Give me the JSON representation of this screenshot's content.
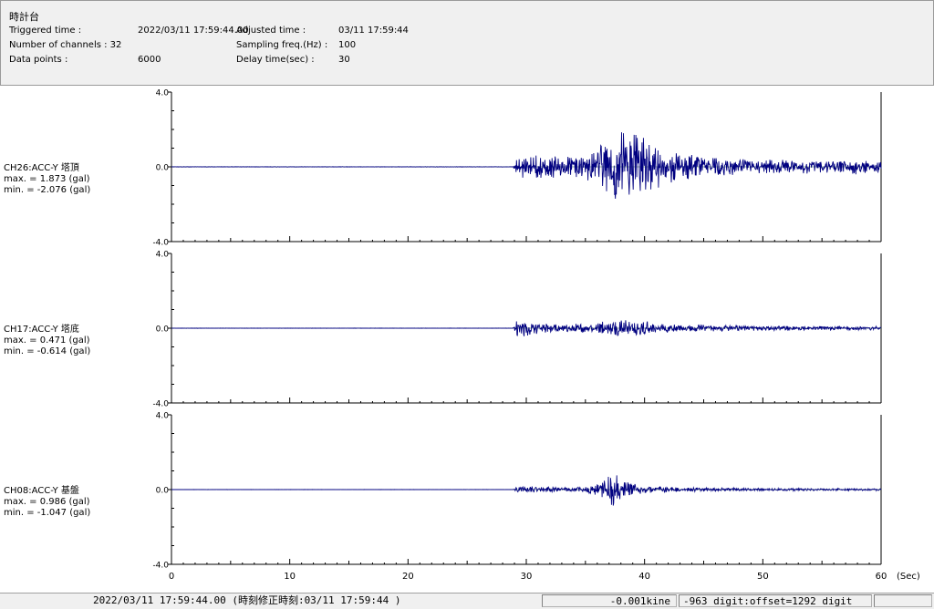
{
  "header": {
    "title": "時計台",
    "triggered_label": "Triggered time :",
    "triggered_value": "2022/03/11 17:59:44.00",
    "channels_label": "Number of channels : 32",
    "datapoints_label": "Data points :",
    "datapoints_value": "6000",
    "adjusted_label": "Adjusted time :",
    "adjusted_value": "03/11 17:59:44",
    "sampling_label": "Sampling freq.(Hz) :",
    "sampling_value": "100",
    "delay_label": "Delay time(sec) :",
    "delay_value": "30"
  },
  "chart_data": {
    "type": "line",
    "x_ticks": [
      "0",
      "10",
      "20",
      "30",
      "40",
      "50",
      "60"
    ],
    "x_unit": "(Sec)",
    "xlim": [
      0,
      60
    ],
    "y_tick_labels": [
      "4.0",
      "0.0",
      "-4.0"
    ],
    "ylim": [
      -4.0,
      4.0
    ],
    "line_color": "#000080",
    "panels": [
      {
        "name": "CH26:ACC-Y 塔頂",
        "max_text": "max. = 1.873 (gal)",
        "min_text": "min. = -2.076 (gal)",
        "max": 1.873,
        "min": -2.076,
        "envelope": [
          [
            0,
            0.01
          ],
          [
            28.9,
            0.01
          ],
          [
            29.2,
            0.45
          ],
          [
            31,
            0.6
          ],
          [
            33,
            0.45
          ],
          [
            35,
            0.55
          ],
          [
            36.5,
            1.2
          ],
          [
            37.3,
            1.5
          ],
          [
            38,
            1.9
          ],
          [
            39,
            1.6
          ],
          [
            40.5,
            1.2
          ],
          [
            42,
            0.75
          ],
          [
            44,
            0.55
          ],
          [
            47,
            0.4
          ],
          [
            50,
            0.35
          ],
          [
            53,
            0.3
          ],
          [
            55,
            0.3
          ],
          [
            57,
            0.28
          ],
          [
            57.8,
            0.4
          ],
          [
            59,
            0.3
          ],
          [
            60,
            0.25
          ]
        ]
      },
      {
        "name": "CH17:ACC-Y 塔底",
        "max_text": "max. = 0.471 (gal)",
        "min_text": "min. = -0.614 (gal)",
        "max": 0.471,
        "min": -0.614,
        "envelope": [
          [
            0,
            0.006
          ],
          [
            28.9,
            0.006
          ],
          [
            29.2,
            0.4
          ],
          [
            30,
            0.35
          ],
          [
            31.5,
            0.2
          ],
          [
            33,
            0.16
          ],
          [
            36,
            0.25
          ],
          [
            37,
            0.35
          ],
          [
            38.5,
            0.38
          ],
          [
            40,
            0.32
          ],
          [
            41.5,
            0.22
          ],
          [
            44,
            0.16
          ],
          [
            48,
            0.12
          ],
          [
            52,
            0.1
          ],
          [
            56,
            0.09
          ],
          [
            60,
            0.08
          ]
        ]
      },
      {
        "name": "CH08:ACC-Y 基盤",
        "max_text": "max. = 0.986 (gal)",
        "min_text": "min. = -1.047 (gal)",
        "max": 0.986,
        "min": -1.047,
        "envelope": [
          [
            0,
            0.004
          ],
          [
            28.9,
            0.004
          ],
          [
            29.2,
            0.12
          ],
          [
            30.5,
            0.15
          ],
          [
            33,
            0.1
          ],
          [
            35,
            0.12
          ],
          [
            36.5,
            0.35
          ],
          [
            37.2,
            0.9
          ],
          [
            37.8,
            0.8
          ],
          [
            38.5,
            0.35
          ],
          [
            40,
            0.18
          ],
          [
            44,
            0.09
          ],
          [
            50,
            0.06
          ],
          [
            55,
            0.05
          ],
          [
            60,
            0.05
          ]
        ]
      }
    ]
  },
  "status": {
    "time": "2022/03/11 17:59:44.00  (時刻修正時刻:03/11 17:59:44  )",
    "kine": "-0.001kine",
    "digit": "-963 digit:offset=1292 digit"
  }
}
